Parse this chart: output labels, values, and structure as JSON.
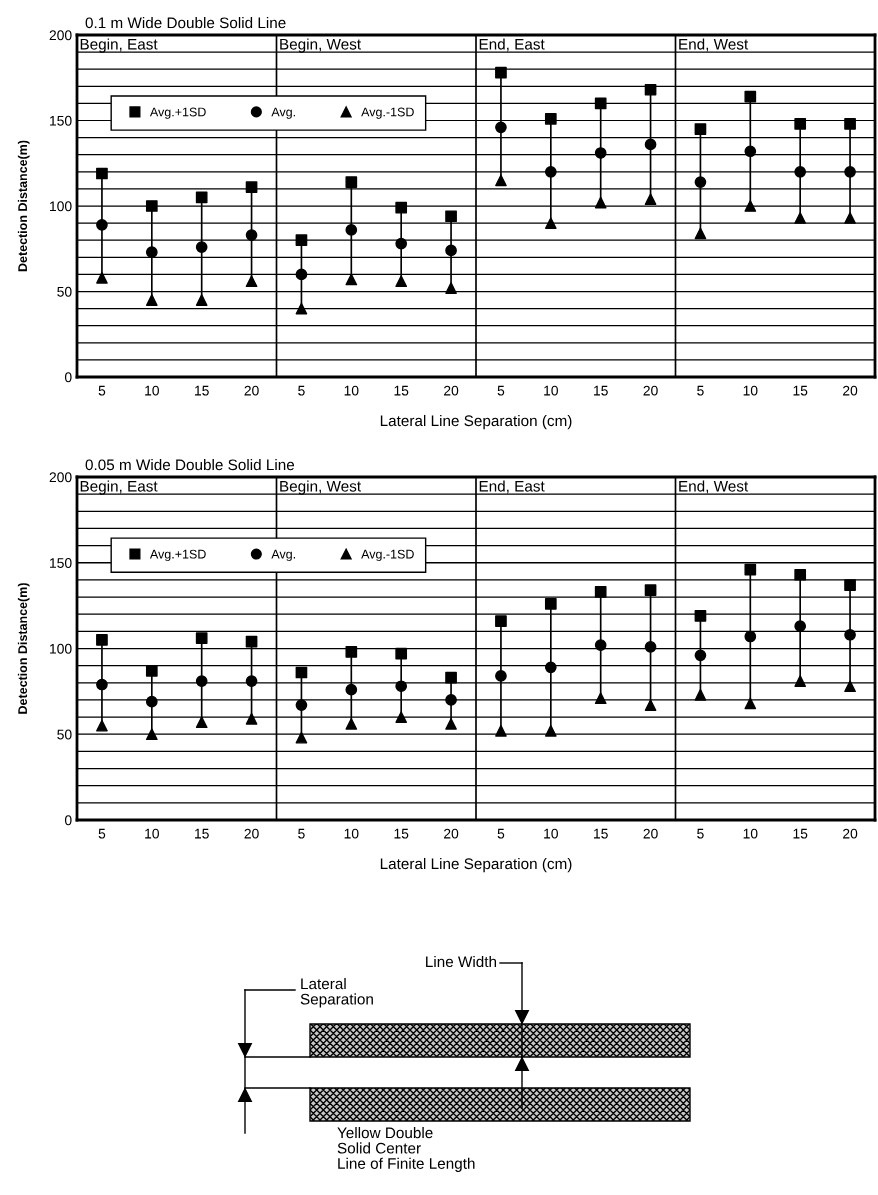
{
  "chart_data": [
    {
      "type": "scatter",
      "title": "0.1 m Wide Double Solid Line",
      "xlabel": "Lateral Line Separation (cm)",
      "ylabel": "Detection Distance(m)",
      "categories": [
        "5",
        "10",
        "15",
        "20",
        "5",
        "10",
        "15",
        "20",
        "5",
        "10",
        "15",
        "20",
        "5",
        "10",
        "15",
        "20"
      ],
      "annotations": [
        "Begin, East",
        "Begin, West",
        "End, East",
        "End, West"
      ],
      "series": [
        {
          "name": "Avg.+1SD",
          "color": "#000000",
          "marker": "square",
          "values": [
            119,
            100,
            105,
            111,
            80,
            114,
            99,
            94,
            178,
            151,
            160,
            168,
            145,
            164,
            148,
            148
          ]
        },
        {
          "name": "Avg.",
          "color": "#000000",
          "marker": "circle",
          "values": [
            89,
            73,
            76,
            83,
            60,
            86,
            78,
            74,
            146,
            120,
            131,
            136,
            114,
            132,
            120,
            120
          ]
        },
        {
          "name": "Avg.-1SD",
          "color": "#000000",
          "marker": "triangle",
          "values": [
            58,
            45,
            45,
            56,
            40,
            57,
            56,
            52,
            115,
            90,
            102,
            104,
            84,
            100,
            93,
            93
          ]
        }
      ],
      "ylim": [
        0,
        200
      ],
      "yticks": [
        0,
        {
          "value": 10,
          "label": null
        },
        {
          "value": 20,
          "label": null
        },
        {
          "value": 30,
          "label": null
        },
        {
          "value": 40,
          "label": null
        },
        50,
        {
          "value": 60,
          "label": null
        },
        {
          "value": 70,
          "label": null
        },
        {
          "value": 80,
          "label": null
        },
        {
          "value": 90,
          "label": null
        },
        100,
        {
          "value": 110,
          "label": null
        },
        {
          "value": 120,
          "label": null
        },
        {
          "value": 130,
          "label": null
        },
        {
          "value": 140,
          "label": null
        },
        150,
        {
          "value": 160,
          "label": null
        },
        {
          "value": 170,
          "label": null
        },
        {
          "value": 180,
          "label": null
        },
        {
          "value": 190,
          "label": null
        },
        200
      ],
      "grid": "y",
      "legend": "top left"
    },
    {
      "type": "scatter",
      "title": "0.05 m Wide Double Solid Line",
      "xlabel": "Lateral Line Separation (cm)",
      "ylabel": "Detection Distance(m)",
      "categories": [
        "5",
        "10",
        "15",
        "20",
        "5",
        "10",
        "15",
        "20",
        "5",
        "10",
        "15",
        "20",
        "5",
        "10",
        "15",
        "20"
      ],
      "annotations": [
        "Begin, East",
        "Begin, West",
        "End, East",
        "End, West"
      ],
      "series": [
        {
          "name": "Avg.+1SD",
          "color": "#000000",
          "marker": "square",
          "values": [
            105,
            87,
            106,
            104,
            86,
            98,
            97,
            83,
            116,
            126,
            133,
            134,
            119,
            146,
            143,
            137
          ]
        },
        {
          "name": "Avg.",
          "color": "#000000",
          "marker": "circle",
          "values": [
            79,
            69,
            81,
            81,
            67,
            76,
            78,
            70,
            84,
            89,
            102,
            101,
            96,
            107,
            113,
            108
          ]
        },
        {
          "name": "Avg.-1SD",
          "color": "#000000",
          "marker": "triangle",
          "values": [
            55,
            50,
            57,
            59,
            48,
            56,
            60,
            56,
            52,
            52,
            71,
            67,
            73,
            68,
            81,
            78
          ]
        }
      ],
      "ylim": [
        0,
        200
      ],
      "yticks": [
        0,
        {
          "value": 10,
          "label": null
        },
        {
          "value": 20,
          "label": null
        },
        {
          "value": 30,
          "label": null
        },
        {
          "value": 40,
          "label": null
        },
        50,
        {
          "value": 60,
          "label": null
        },
        {
          "value": 70,
          "label": null
        },
        {
          "value": 80,
          "label": null
        },
        {
          "value": 90,
          "label": null
        },
        100,
        {
          "value": 110,
          "label": null
        },
        {
          "value": 120,
          "label": null
        },
        {
          "value": 130,
          "label": null
        },
        {
          "value": 140,
          "label": null
        },
        150,
        {
          "value": 160,
          "label": null
        },
        {
          "value": 170,
          "label": null
        },
        {
          "value": 180,
          "label": null
        },
        {
          "value": 190,
          "label": null
        },
        200
      ],
      "grid": "y",
      "legend": "top left"
    },
    {
      "type": "other",
      "annotations": [
        "Line Width",
        "Lateral\nSeparation",
        "Yellow Double\nSolid Center\nLine of Finite Length"
      ]
    }
  ]
}
